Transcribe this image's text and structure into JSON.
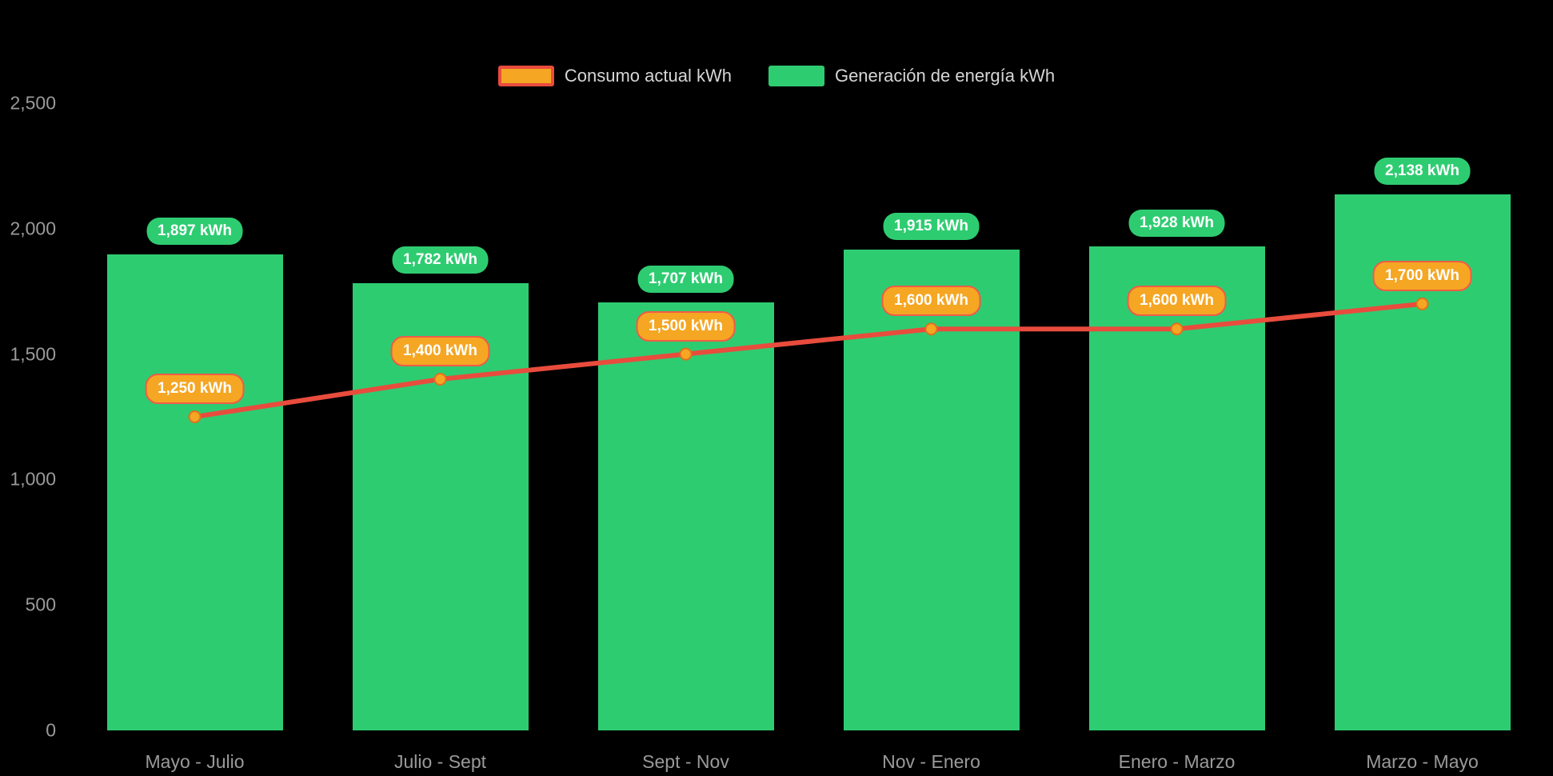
{
  "chart_data": {
    "type": "bar",
    "subtype": "bar-line-combo",
    "background": "#000000",
    "categories": [
      "Mayo - Julio",
      "Julio - Sept",
      "Sept - Nov",
      "Nov - Enero",
      "Enero - Marzo",
      "Marzo - Mayo"
    ],
    "series": [
      {
        "name": "Consumo actual kWh",
        "type": "line",
        "color": "#e84c3d",
        "marker_color": "#f5a623",
        "values": [
          1250,
          1400,
          1500,
          1600,
          1600,
          1700
        ],
        "labels": [
          "1,250 kWh",
          "1,400 kWh",
          "1,500 kWh",
          "1,600 kWh",
          "1,600 kWh",
          "1,700 kWh"
        ]
      },
      {
        "name": "Generación de energía kWh",
        "type": "bar",
        "color": "#2ecc71",
        "values": [
          1897,
          1782,
          1707,
          1915,
          1928,
          2138
        ],
        "labels": [
          "1,897 kWh",
          "1,782 kWh",
          "1,707 kWh",
          "1,915 kWh",
          "1,928 kWh",
          "2,138 kWh"
        ]
      }
    ],
    "ylim": [
      0,
      2500
    ],
    "yticks": [
      {
        "value": 0,
        "label": "0"
      },
      {
        "value": 500,
        "label": "500"
      },
      {
        "value": 1000,
        "label": "1,000"
      },
      {
        "value": 1500,
        "label": "1,500"
      },
      {
        "value": 2000,
        "label": "2,000"
      },
      {
        "value": 2500,
        "label": "2,500"
      }
    ],
    "grid": false,
    "legend_position": "top-center",
    "xlabel": "",
    "ylabel": ""
  }
}
